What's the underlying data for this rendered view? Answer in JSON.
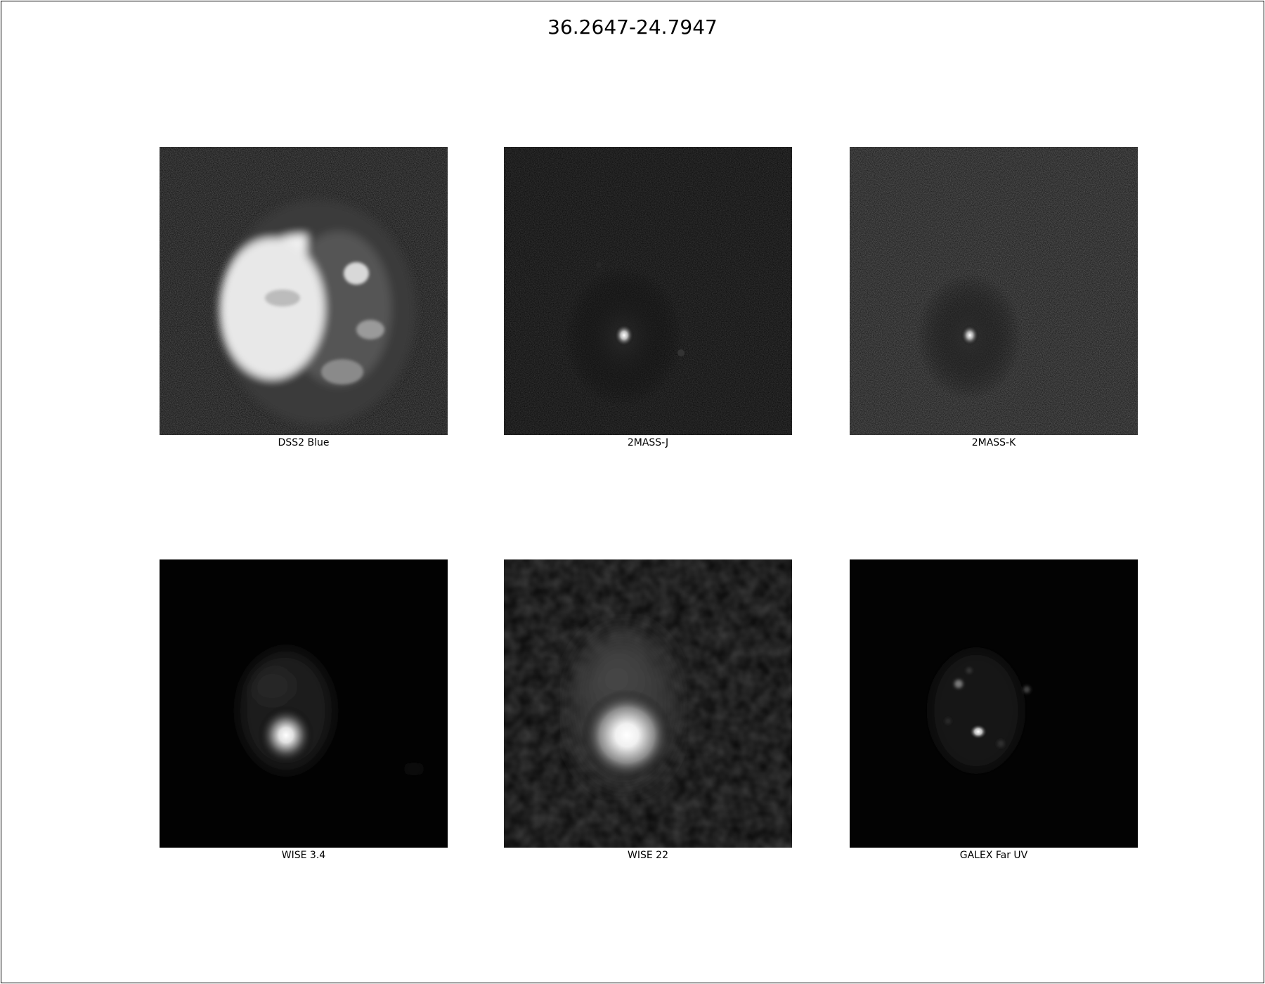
{
  "title": "36.2647-24.7947",
  "panels": [
    {
      "label": "DSS2 Blue"
    },
    {
      "label": "2MASS-J"
    },
    {
      "label": "2MASS-K"
    },
    {
      "label": "WISE 3.4"
    },
    {
      "label": "WISE 22"
    },
    {
      "label": "GALEX Far UV"
    }
  ],
  "colors": {
    "background": "#ffffff",
    "image_background": "#000000",
    "text": "#000000"
  }
}
